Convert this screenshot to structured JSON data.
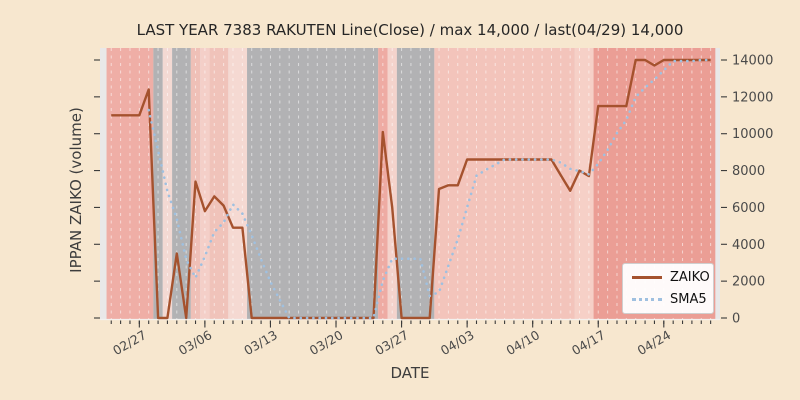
{
  "title": "LAST YEAR 7383 RAKUTEN Line(Close) / max 14,000 / last(04/29) 14,000",
  "x_axis": {
    "label": "DATE",
    "major_tick_dates": [
      "02/27",
      "03/06",
      "03/13",
      "03/20",
      "03/27",
      "04/03",
      "04/10",
      "04/17",
      "04/24"
    ]
  },
  "y_axis": {
    "label": "IPPAN ZAIKO (volume)",
    "ticks": [
      0,
      2000,
      4000,
      6000,
      8000,
      10000,
      12000,
      14000
    ]
  },
  "legend": [
    {
      "label": "ZAIKO",
      "style": "solid",
      "color": "#a5522e"
    },
    {
      "label": "SMA5",
      "style": "dotted",
      "color": "#9fc0e0"
    }
  ],
  "colors": {
    "figure_background": "#f7e7cf",
    "plot_background": "#e9e8e8",
    "zaiko_line": "#a5522e",
    "sma5_line": "#9fc0e0",
    "grid_dash": "rgba(255,255,255,0.55)",
    "tick": "#3a3a3a",
    "tick_label": "#4a4a4a",
    "band_gray": "#b2b2b4"
  },
  "chart_data": {
    "type": "line",
    "title": "LAST YEAR 7383 RAKUTEN Line(Close) / max 14,000 / last(04/29) 14,000",
    "xlabel": "DATE",
    "ylabel": "IPPAN ZAIKO (volume)",
    "ylim": [
      0,
      14650
    ],
    "grid": "vertical-daily-white-dashed",
    "legend_position": "lower right",
    "max_value": 14000,
    "last_date": "04/29",
    "last_value": 14000,
    "x": [
      "02/24",
      "02/25",
      "02/26",
      "02/27",
      "02/28",
      "03/01",
      "03/02",
      "03/03",
      "03/04",
      "03/05",
      "03/06",
      "03/07",
      "03/08",
      "03/09",
      "03/10",
      "03/11",
      "03/12",
      "03/13",
      "03/14",
      "03/15",
      "03/16",
      "03/17",
      "03/18",
      "03/19",
      "03/20",
      "03/21",
      "03/22",
      "03/23",
      "03/24",
      "03/25",
      "03/26",
      "03/27",
      "03/28",
      "03/29",
      "03/30",
      "03/31",
      "04/01",
      "04/02",
      "04/03",
      "04/04",
      "04/05",
      "04/06",
      "04/07",
      "04/08",
      "04/09",
      "04/10",
      "04/11",
      "04/12",
      "04/13",
      "04/14",
      "04/15",
      "04/16",
      "04/17",
      "04/18",
      "04/19",
      "04/20",
      "04/21",
      "04/22",
      "04/23",
      "04/24",
      "04/25",
      "04/26",
      "04/27",
      "04/28",
      "04/29"
    ],
    "series": [
      {
        "name": "ZAIKO",
        "style": "solid",
        "values": [
          11000,
          11000,
          11000,
          11000,
          12400,
          0,
          0,
          3500,
          0,
          7400,
          5800,
          6600,
          6100,
          4900,
          4900,
          0,
          0,
          0,
          0,
          0,
          0,
          0,
          0,
          0,
          0,
          0,
          0,
          0,
          0,
          10100,
          6000,
          0,
          0,
          0,
          0,
          7000,
          7200,
          7200,
          8600,
          8600,
          8600,
          8600,
          8600,
          8600,
          8600,
          8600,
          8600,
          8600,
          7750,
          6900,
          8000,
          7700,
          11500,
          11500,
          11500,
          11500,
          14000,
          14000,
          13700,
          14000,
          14000,
          14000,
          14000,
          14000,
          14000
        ]
      },
      {
        "name": "SMA5",
        "style": "dotted",
        "derived_from": "ZAIKO",
        "window": 5
      }
    ],
    "bands": [
      {
        "from": "02/24",
        "to": "02/28",
        "color": "#efaea6"
      },
      {
        "from": "03/01",
        "to": "03/01",
        "color": "#b2b2b4"
      },
      {
        "from": "03/02",
        "to": "03/02",
        "color": "#f3d9d3"
      },
      {
        "from": "03/03",
        "to": "03/04",
        "color": "#b2b2b4"
      },
      {
        "from": "03/05",
        "to": "03/05",
        "color": "#efc0b7"
      },
      {
        "from": "03/06",
        "to": "03/06",
        "color": "#f4cfc8"
      },
      {
        "from": "03/07",
        "to": "03/08",
        "color": "#f0c3ba"
      },
      {
        "from": "03/09",
        "to": "03/10",
        "color": "#f5d9d2"
      },
      {
        "from": "03/11",
        "to": "03/24",
        "color": "#b2b2b4"
      },
      {
        "from": "03/25",
        "to": "03/25",
        "color": "#eeaba3"
      },
      {
        "from": "03/26",
        "to": "03/26",
        "color": "#f4d3cc"
      },
      {
        "from": "03/27",
        "to": "03/30",
        "color": "#b2b2b4"
      },
      {
        "from": "03/31",
        "to": "04/14",
        "color": "#f3c4bb"
      },
      {
        "from": "04/15",
        "to": "04/16",
        "color": "#f6d0c7"
      },
      {
        "from": "04/17",
        "to": "04/29",
        "color": "#eb9e95"
      }
    ]
  }
}
